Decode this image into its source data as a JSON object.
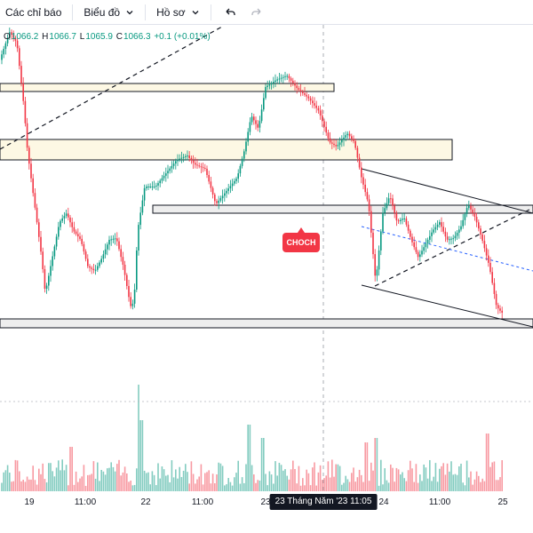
{
  "toolbar": {
    "indicators_label": "Các chỉ báo",
    "chart_label": "Biểu đồ",
    "profile_label": "Hồ sơ",
    "undo_icon": "undo-icon",
    "redo_icon": "redo-icon"
  },
  "ohlc": {
    "open_label": "O",
    "open_value": "1066.2",
    "high_label": "H",
    "high_value": "1066.7",
    "low_label": "L",
    "low_value": "1065.9",
    "close_label": "C",
    "close_value": "1066.3",
    "change_value": "+0.1 (+0.01%)"
  },
  "annotation": {
    "choch_label": "CHOCH"
  },
  "time_axis": {
    "ticks": [
      "19",
      "11:00",
      "22",
      "11:00",
      "23",
      "24",
      "11:00",
      "25"
    ],
    "crosshair_label": "23 Tháng Năm '23   11:05"
  },
  "colors": {
    "up": "#089981",
    "down": "#f23645",
    "zone_fill": "#fdf8e4",
    "zone_fill_gray": "#eeeeee",
    "trend_line": "#131722",
    "blue_dashed": "#2962ff"
  }
}
